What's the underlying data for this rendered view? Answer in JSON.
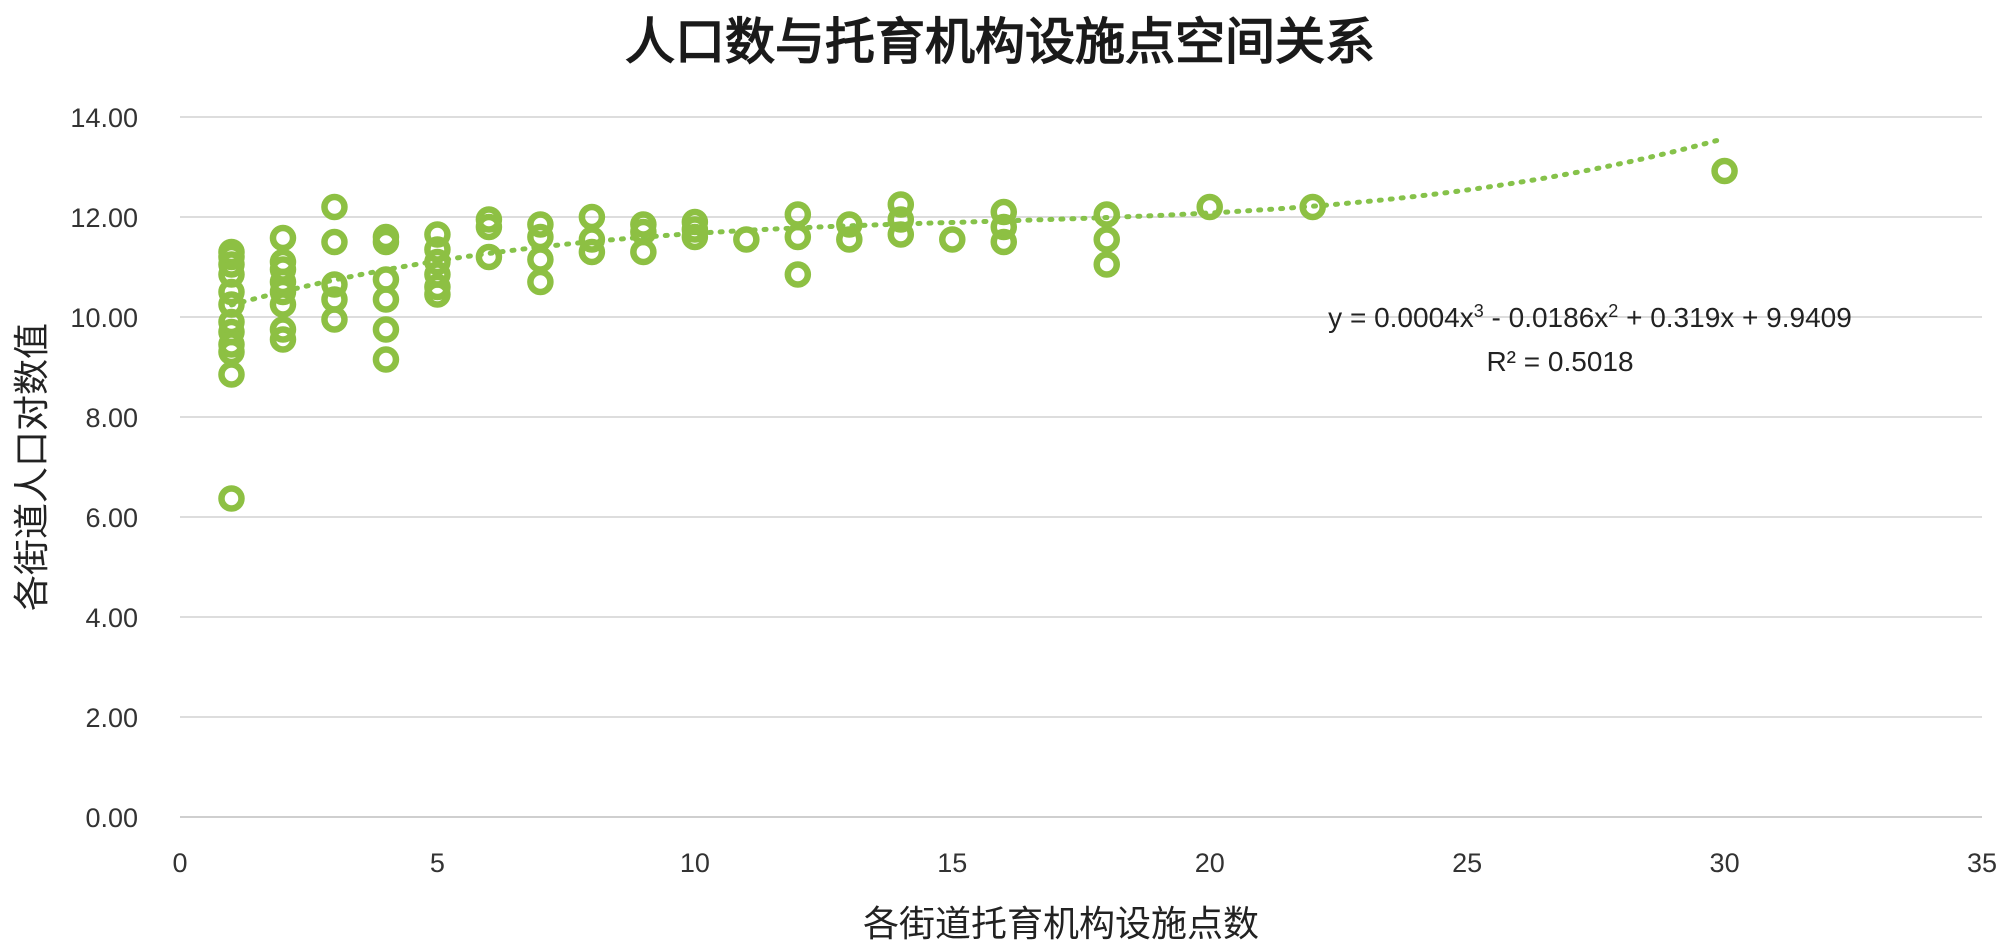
{
  "chart_data": {
    "type": "scatter",
    "title": "人口数与托育机构设施点空间关系",
    "xlabel": "各街道托育机构设施点数",
    "ylabel": "各街道人口对数值",
    "xlim": [
      0,
      35
    ],
    "ylim": [
      0,
      14
    ],
    "x_ticks": [
      "0",
      "5",
      "10",
      "15",
      "20",
      "25",
      "30",
      "35"
    ],
    "y_ticks": [
      "0.00",
      "2.00",
      "4.00",
      "6.00",
      "8.00",
      "10.00",
      "12.00",
      "14.00"
    ],
    "grid": "horizontal",
    "trendline": {
      "kind": "polynomial-3",
      "coefficients": [
        0.0004,
        -0.0186,
        0.319,
        9.9409
      ],
      "equation": "y = 0.0004x³ - 0.0186x² + 0.319x + 9.9409",
      "r2_label": "R² = 0.5018"
    },
    "points": [
      {
        "x": 1,
        "y": 11.3
      },
      {
        "x": 1,
        "y": 11.2
      },
      {
        "x": 1,
        "y": 11.05
      },
      {
        "x": 1,
        "y": 10.85
      },
      {
        "x": 1,
        "y": 10.5
      },
      {
        "x": 1,
        "y": 10.25
      },
      {
        "x": 1,
        "y": 9.9
      },
      {
        "x": 1,
        "y": 9.7
      },
      {
        "x": 1,
        "y": 9.45
      },
      {
        "x": 1,
        "y": 9.3
      },
      {
        "x": 1,
        "y": 8.85
      },
      {
        "x": 1,
        "y": 6.37
      },
      {
        "x": 2,
        "y": 11.58
      },
      {
        "x": 2,
        "y": 11.1
      },
      {
        "x": 2,
        "y": 10.95
      },
      {
        "x": 2,
        "y": 10.7
      },
      {
        "x": 2,
        "y": 10.5
      },
      {
        "x": 2,
        "y": 10.25
      },
      {
        "x": 2,
        "y": 9.75
      },
      {
        "x": 2,
        "y": 9.55
      },
      {
        "x": 3,
        "y": 12.2
      },
      {
        "x": 3,
        "y": 11.5
      },
      {
        "x": 3,
        "y": 10.65
      },
      {
        "x": 3,
        "y": 10.35
      },
      {
        "x": 3,
        "y": 9.95
      },
      {
        "x": 4,
        "y": 11.6
      },
      {
        "x": 4,
        "y": 11.5
      },
      {
        "x": 4,
        "y": 10.75
      },
      {
        "x": 4,
        "y": 10.35
      },
      {
        "x": 4,
        "y": 9.75
      },
      {
        "x": 4,
        "y": 9.15
      },
      {
        "x": 5,
        "y": 11.65
      },
      {
        "x": 5,
        "y": 11.35
      },
      {
        "x": 5,
        "y": 11.1
      },
      {
        "x": 5,
        "y": 10.85
      },
      {
        "x": 5,
        "y": 10.6
      },
      {
        "x": 5,
        "y": 10.45
      },
      {
        "x": 6,
        "y": 11.95
      },
      {
        "x": 6,
        "y": 11.8
      },
      {
        "x": 6,
        "y": 11.2
      },
      {
        "x": 7,
        "y": 11.85
      },
      {
        "x": 7,
        "y": 11.6
      },
      {
        "x": 7,
        "y": 11.15
      },
      {
        "x": 7,
        "y": 10.7
      },
      {
        "x": 8,
        "y": 12.0
      },
      {
        "x": 8,
        "y": 11.55
      },
      {
        "x": 8,
        "y": 11.3
      },
      {
        "x": 9,
        "y": 11.85
      },
      {
        "x": 9,
        "y": 11.7
      },
      {
        "x": 9,
        "y": 11.3
      },
      {
        "x": 10,
        "y": 11.9
      },
      {
        "x": 10,
        "y": 11.75
      },
      {
        "x": 10,
        "y": 11.6
      },
      {
        "x": 11,
        "y": 11.55
      },
      {
        "x": 12,
        "y": 12.05
      },
      {
        "x": 12,
        "y": 11.6
      },
      {
        "x": 12,
        "y": 10.85
      },
      {
        "x": 13,
        "y": 11.85
      },
      {
        "x": 13,
        "y": 11.55
      },
      {
        "x": 14,
        "y": 12.25
      },
      {
        "x": 14,
        "y": 11.95
      },
      {
        "x": 14,
        "y": 11.65
      },
      {
        "x": 15,
        "y": 11.55
      },
      {
        "x": 16,
        "y": 12.1
      },
      {
        "x": 16,
        "y": 11.8
      },
      {
        "x": 16,
        "y": 11.5
      },
      {
        "x": 18,
        "y": 12.05
      },
      {
        "x": 18,
        "y": 11.55
      },
      {
        "x": 18,
        "y": 11.05
      },
      {
        "x": 20,
        "y": 12.2
      },
      {
        "x": 22,
        "y": 12.2
      },
      {
        "x": 30,
        "y": 12.92
      }
    ],
    "colors": {
      "marker": "#8dc043",
      "trendline": "#86c24a",
      "grid": "#dddddd"
    }
  }
}
